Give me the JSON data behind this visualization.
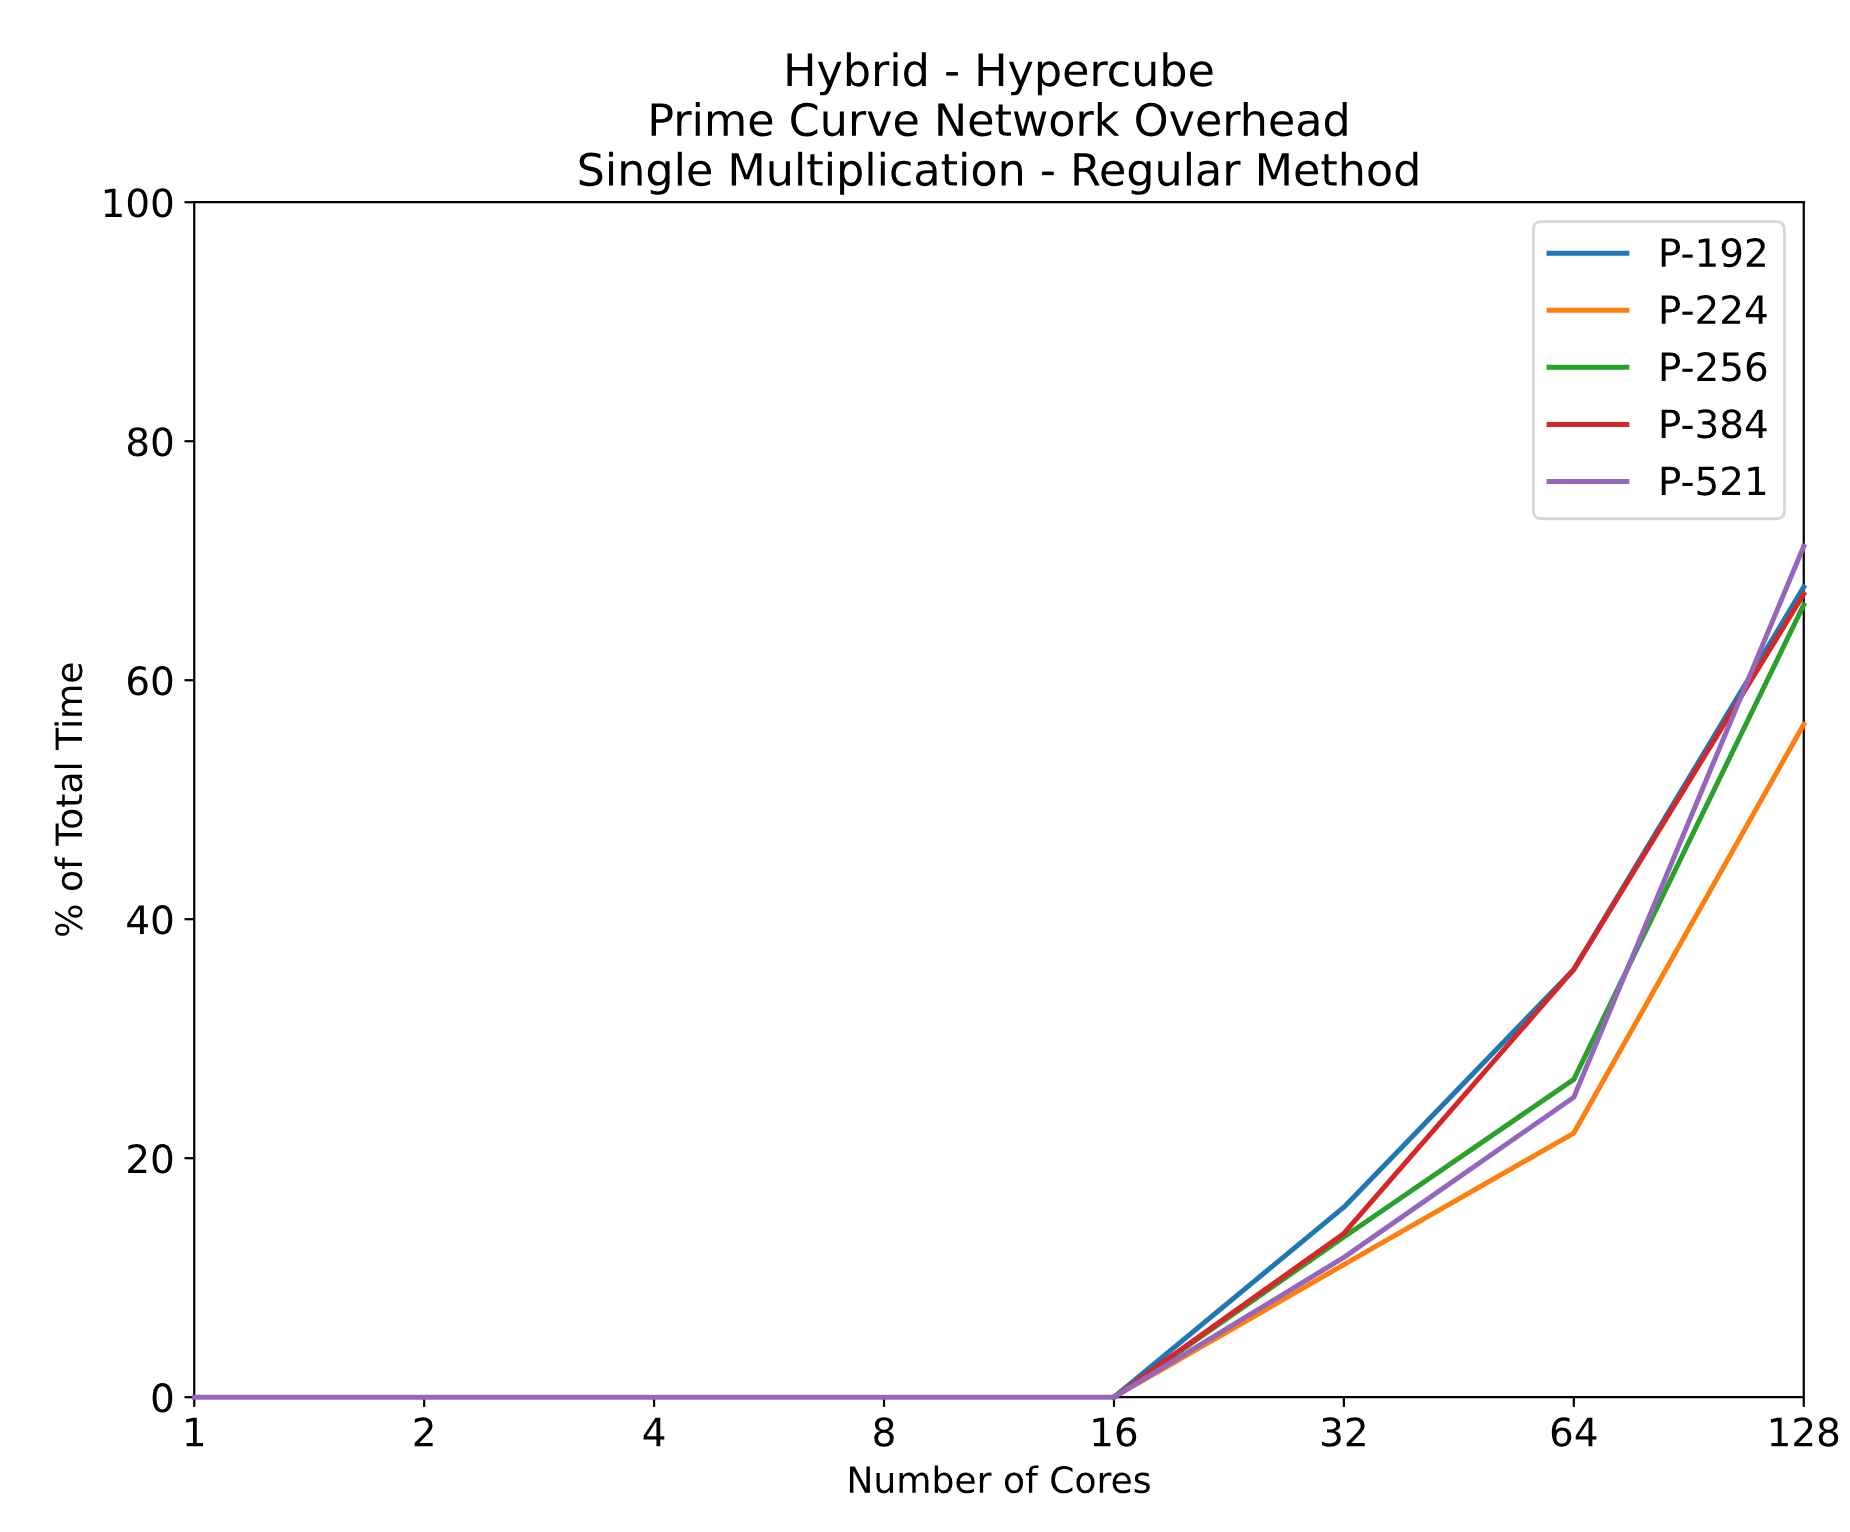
{
  "chart_data": {
    "type": "line",
    "title": "Hybrid - Hypercube\nPrime Curve Network Overhead\nSingle Multiplication - Regular Method",
    "xlabel": "Number of Cores",
    "ylabel": "% of Total Time",
    "categories": [
      "1",
      "2",
      "4",
      "8",
      "16",
      "32",
      "64",
      "128"
    ],
    "series": [
      {
        "name": "P-192",
        "color": "#1f77b4",
        "values": [
          null,
          null,
          null,
          null,
          0,
          15.9,
          35.8,
          67.8
        ]
      },
      {
        "name": "P-224",
        "color": "#ff7f0e",
        "values": [
          null,
          null,
          null,
          null,
          0,
          11.1,
          22.1,
          56.3
        ]
      },
      {
        "name": "P-256",
        "color": "#2ca02c",
        "values": [
          null,
          null,
          null,
          null,
          0,
          13.4,
          26.6,
          66.3
        ]
      },
      {
        "name": "P-384",
        "color": "#d62728",
        "values": [
          null,
          null,
          null,
          null,
          0,
          13.7,
          35.8,
          67.2
        ]
      },
      {
        "name": "P-521",
        "color": "#9467bd",
        "values": [
          0,
          0,
          0,
          0,
          0,
          11.7,
          25.1,
          71.2
        ]
      }
    ],
    "ylim": [
      0,
      100
    ],
    "yticks": [
      0,
      20,
      40,
      60,
      80,
      100
    ],
    "legend": "top right",
    "grid": false,
    "marker": "none",
    "line_style": "solid"
  }
}
